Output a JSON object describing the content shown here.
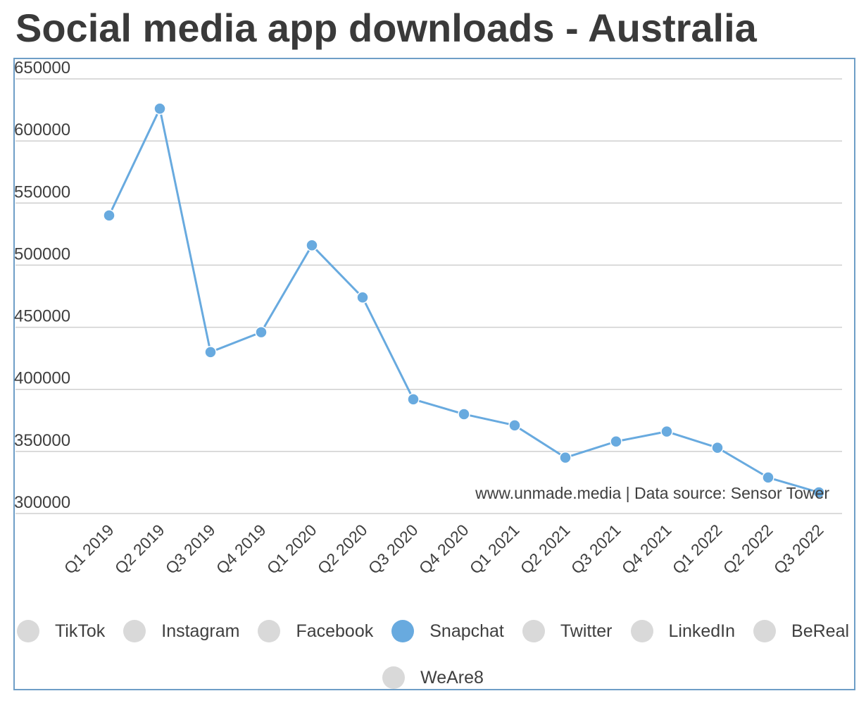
{
  "title": "Social media app downloads - Australia",
  "source_note": "www.unmade.media | Data source: Sensor Tower",
  "colors": {
    "active_series": "#68aadf",
    "inactive_legend": "#d9d9d9",
    "grid": "#cfcfcf",
    "frame": "#6e9ec7",
    "text": "#3f3f3f"
  },
  "legend": [
    {
      "label": "TikTok",
      "active": false
    },
    {
      "label": "Instagram",
      "active": false
    },
    {
      "label": "Facebook",
      "active": false
    },
    {
      "label": "Snapchat",
      "active": true
    },
    {
      "label": "Twitter",
      "active": false
    },
    {
      "label": "LinkedIn",
      "active": false
    },
    {
      "label": "BeReal",
      "active": false
    },
    {
      "label": "WeAre8",
      "active": false
    }
  ],
  "chart_data": {
    "type": "line",
    "title": "Social media app downloads - Australia",
    "xlabel": "",
    "ylabel": "",
    "ylim": [
      300000,
      650000
    ],
    "yticks": [
      300000,
      350000,
      400000,
      450000,
      500000,
      550000,
      600000,
      650000
    ],
    "ytick_labels": [
      "300000",
      "350000",
      "400000",
      "450000",
      "500000",
      "550000",
      "600000",
      "650000"
    ],
    "grid": true,
    "legend_position": "bottom",
    "categories": [
      "Q1 2019",
      "Q2 2019",
      "Q3 2019",
      "Q4 2019",
      "Q1 2020",
      "Q2 2020",
      "Q3 2020",
      "Q4 2020",
      "Q1 2021",
      "Q2 2021",
      "Q3 2021",
      "Q4 2021",
      "Q1 2022",
      "Q2 2022",
      "Q3 2022"
    ],
    "series": [
      {
        "name": "Snapchat",
        "values": [
          540000,
          626000,
          430000,
          446000,
          516000,
          474000,
          392000,
          380000,
          371000,
          345000,
          358000,
          366000,
          353000,
          329000,
          317000
        ]
      }
    ]
  }
}
